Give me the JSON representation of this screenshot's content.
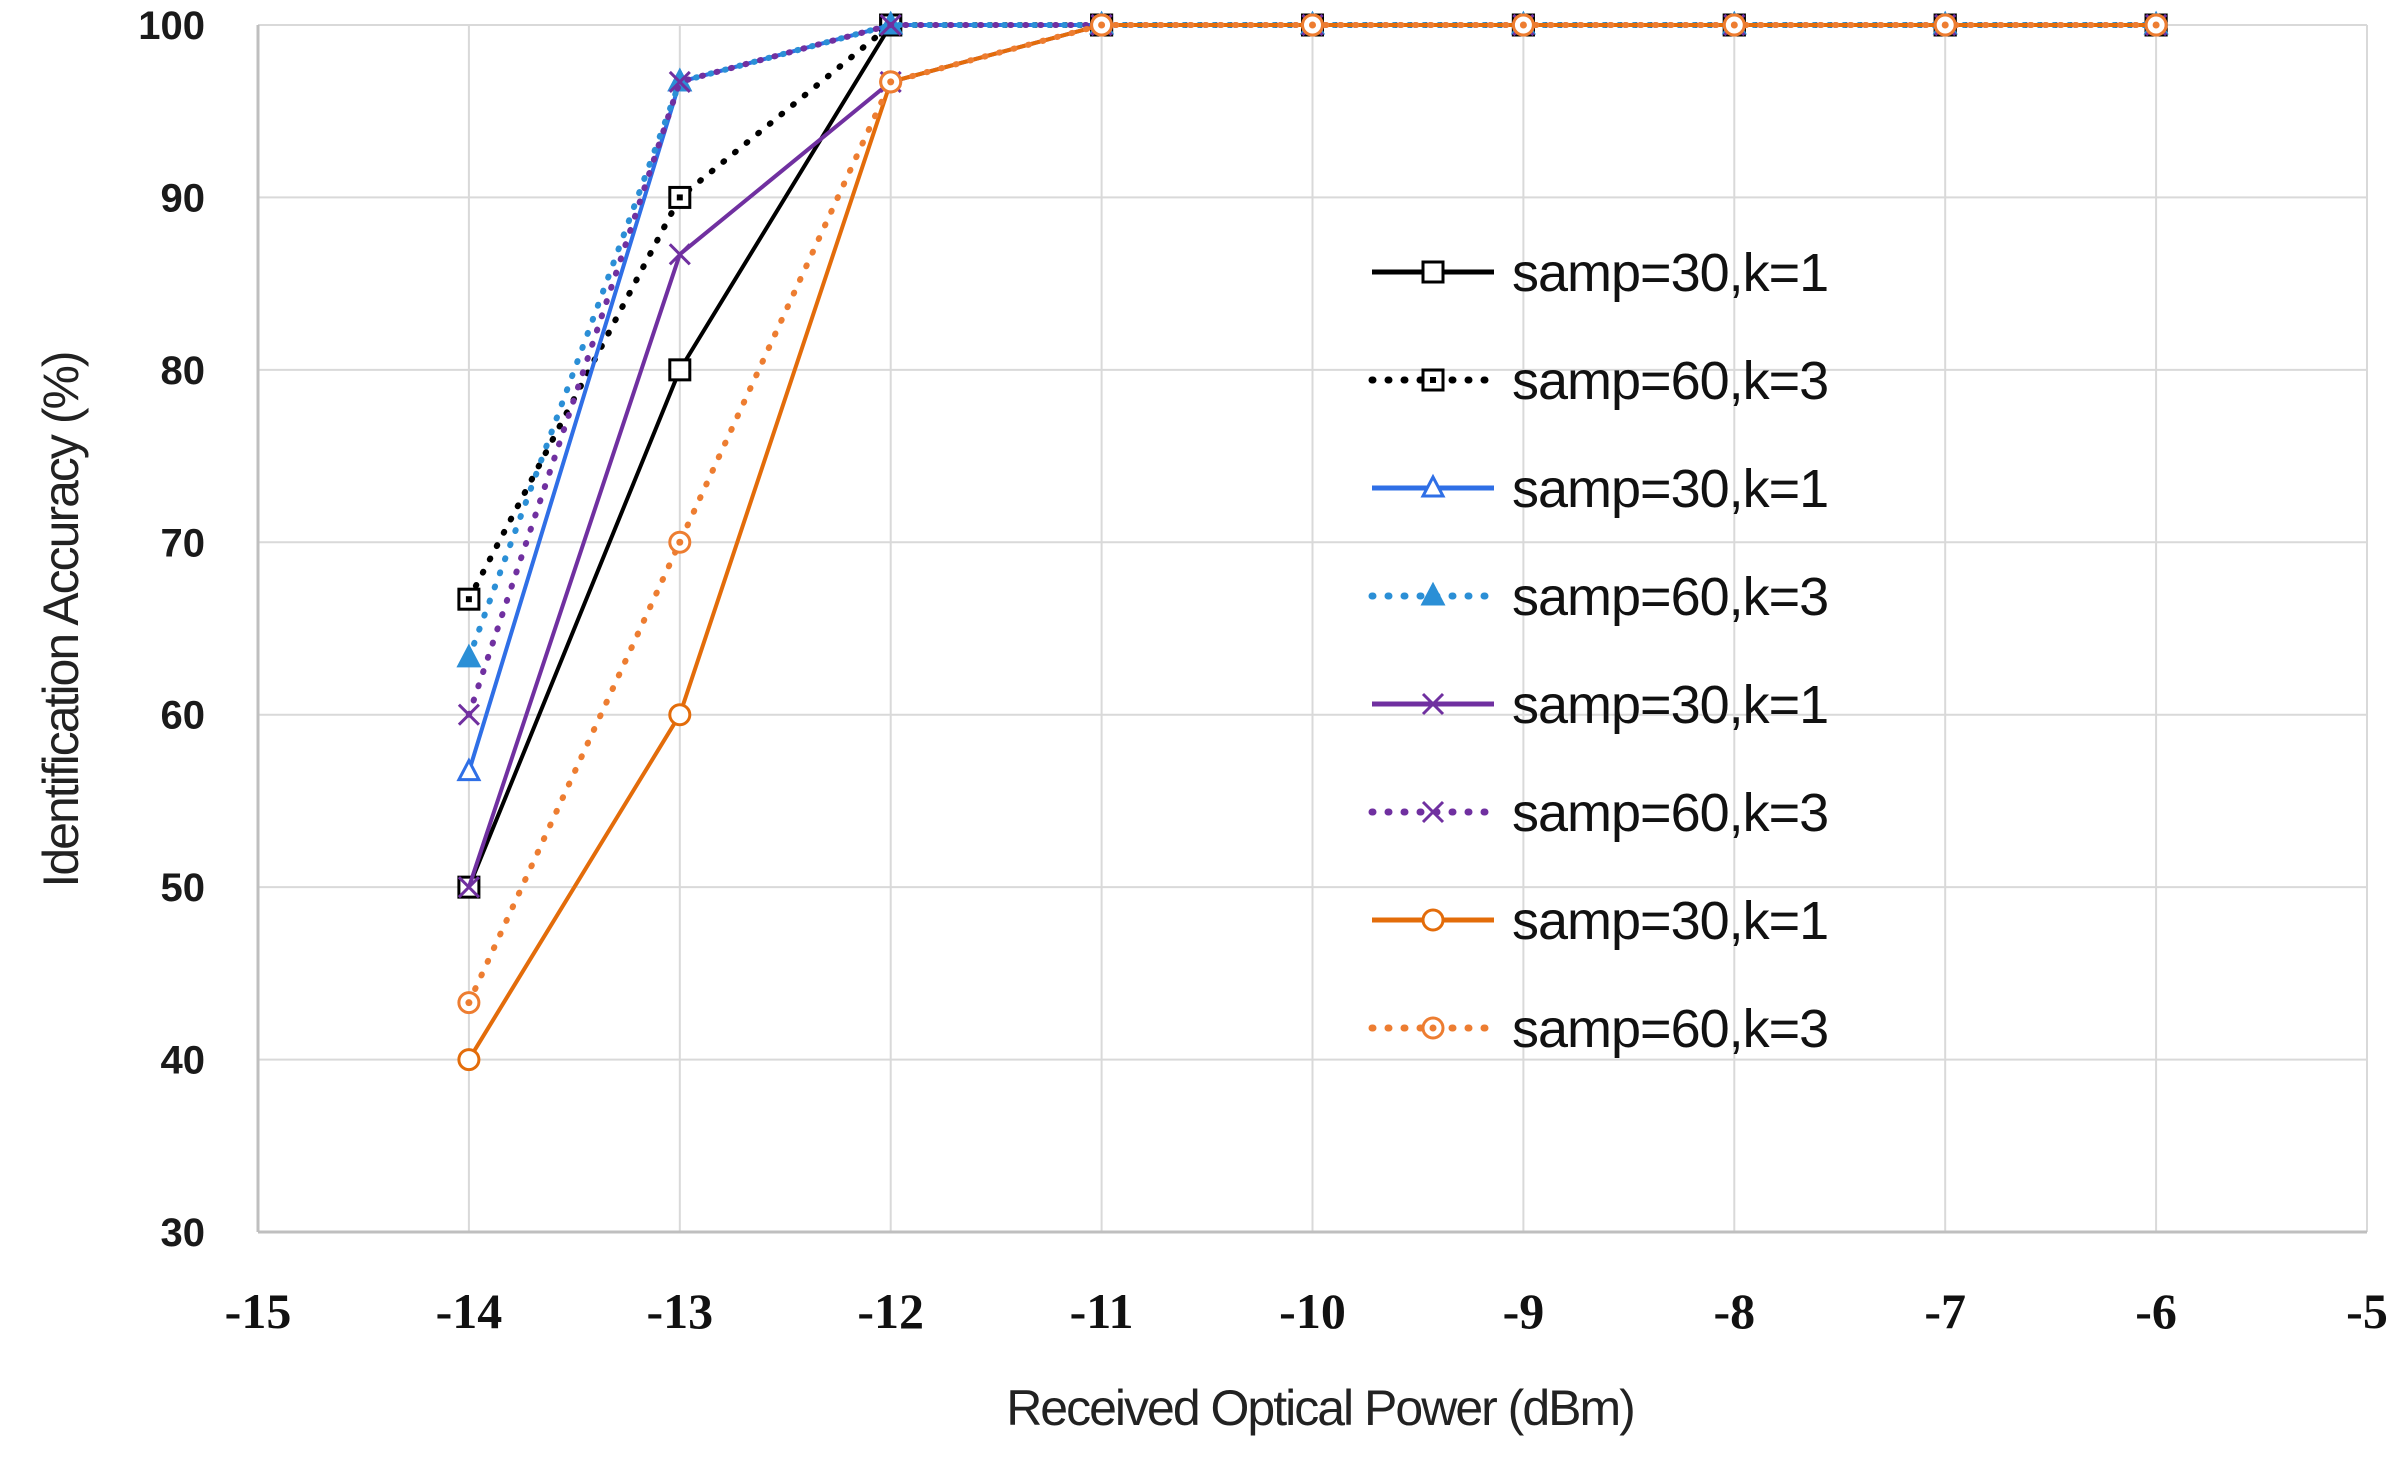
{
  "chart_data": {
    "type": "line",
    "title": "",
    "xlabel": "Received Optical Power (dBm)",
    "ylabel": "Identification Accuracy (%)",
    "xlim": [
      -15,
      -5
    ],
    "ylim": [
      30,
      100
    ],
    "x_ticks": [
      -15,
      -14,
      -13,
      -12,
      -11,
      -10,
      -9,
      -8,
      -7,
      -6,
      -5
    ],
    "y_ticks": [
      30,
      40,
      50,
      60,
      70,
      80,
      90,
      100
    ],
    "grid": true,
    "legend_position": "center-right",
    "x": [
      -14,
      -13,
      -12,
      -11,
      -10,
      -9,
      -8,
      -7,
      -6
    ],
    "series": [
      {
        "name": "samp=30,k=1",
        "color": "#000000",
        "dash": "solid",
        "marker": "square",
        "values": [
          50,
          80,
          100,
          100,
          100,
          100,
          100,
          100,
          100
        ]
      },
      {
        "name": "samp=60,k=3",
        "color": "#000000",
        "dash": "dotted",
        "marker": "square-dot",
        "values": [
          66.7,
          90,
          100,
          100,
          100,
          100,
          100,
          100,
          100
        ]
      },
      {
        "name": "samp=30,k=1",
        "color": "#2f6fe6",
        "dash": "solid",
        "marker": "triangle",
        "values": [
          56.7,
          96.7,
          100,
          100,
          100,
          100,
          100,
          100,
          100
        ]
      },
      {
        "name": "samp=60,k=3",
        "color": "#2b8fd6",
        "dash": "dotted",
        "marker": "triangle-filled",
        "values": [
          63.3,
          96.7,
          100,
          100,
          100,
          100,
          100,
          100,
          100
        ]
      },
      {
        "name": "samp=30,k=1",
        "color": "#7030a0",
        "dash": "solid",
        "marker": "x",
        "values": [
          50,
          86.7,
          96.7,
          100,
          100,
          100,
          100,
          100,
          100
        ]
      },
      {
        "name": "samp=60,k=3",
        "color": "#7030a0",
        "dash": "dotted",
        "marker": "x",
        "values": [
          60,
          96.7,
          100,
          100,
          100,
          100,
          100,
          100,
          100
        ]
      },
      {
        "name": "samp=30,k=1",
        "color": "#e36c0a",
        "dash": "solid",
        "marker": "circle",
        "values": [
          40,
          60,
          96.7,
          100,
          100,
          100,
          100,
          100,
          100
        ]
      },
      {
        "name": "samp=60,k=3",
        "color": "#ed7d31",
        "dash": "dotted",
        "marker": "circle-dot",
        "values": [
          43.3,
          70,
          96.7,
          100,
          100,
          100,
          100,
          100,
          100
        ]
      }
    ]
  }
}
